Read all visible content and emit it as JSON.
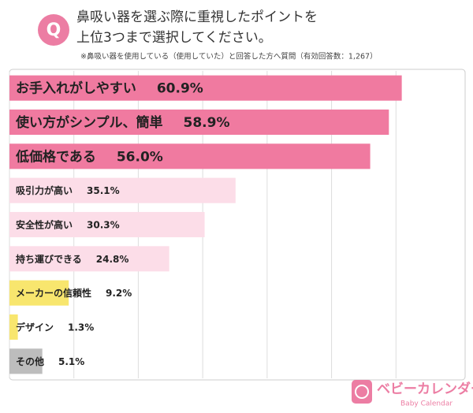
{
  "badge": "Q",
  "logo": {
    "name": "ベビーカレンダー",
    "sub": "Baby Calendar"
  },
  "chart_data": {
    "type": "bar",
    "orientation": "horizontal",
    "title": [
      "鼻吸い器を選ぶ際に重視したポイントを",
      "上位3つまで選択してください。"
    ],
    "subtitle": "※鼻吸い器を使用している（使用していた）と回答した方へ質問（有効回答数：1,267）",
    "categories": [
      "お手入れがしやすい",
      "使い方がシンプル、簡単",
      "低価格である",
      "吸引力が高い",
      "安全性が高い",
      "持ち運びできる",
      "メーカーの信頼性",
      "デザイン",
      "その他"
    ],
    "values": [
      60.9,
      58.9,
      56.0,
      35.1,
      30.3,
      24.8,
      9.2,
      1.3,
      5.1
    ],
    "value_labels": [
      "60.9%",
      "58.9%",
      "56.0%",
      "35.1%",
      "30.3%",
      "24.8%",
      "9.2%",
      "1.3%",
      "5.1%"
    ],
    "colors": [
      "#f07aa0",
      "#f07aa0",
      "#f07aa0",
      "#fcdde8",
      "#fcdde8",
      "#fcdde8",
      "#f8e66e",
      "#f8e66e",
      "#bdbdbd"
    ],
    "xlim": [
      0,
      70
    ],
    "xticks": [
      0,
      10,
      20,
      30,
      40,
      50,
      60
    ],
    "grid": true
  }
}
